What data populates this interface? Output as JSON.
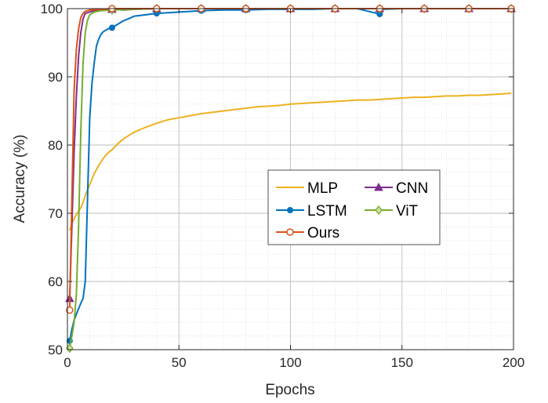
{
  "chart_data": {
    "type": "line",
    "xlabel": "Epochs",
    "ylabel": "Accuracy (%)",
    "xlim": [
      0,
      200
    ],
    "ylim": [
      50,
      100
    ],
    "xticks": [
      "0",
      "50",
      "100",
      "150",
      "200"
    ],
    "yticks": [
      "50",
      "60",
      "70",
      "80",
      "90",
      "100"
    ],
    "grid": "on (major and minor, dotted)",
    "legend_location": "center",
    "marker_interval": 20,
    "series": [
      {
        "name": "MLP",
        "color": "#EDB120",
        "marker": "none",
        "points": [
          [
            1,
            67.5
          ],
          [
            2,
            68.5
          ],
          [
            3,
            69.2
          ],
          [
            4,
            69.8
          ],
          [
            5,
            70.3
          ],
          [
            6,
            70.8
          ],
          [
            7,
            71.6
          ],
          [
            8,
            72.6
          ],
          [
            9,
            73.4
          ],
          [
            10,
            74.2
          ],
          [
            12,
            75.8
          ],
          [
            14,
            77.0
          ],
          [
            16,
            78.0
          ],
          [
            18,
            78.8
          ],
          [
            20,
            79.3
          ],
          [
            22,
            80.0
          ],
          [
            24,
            80.6
          ],
          [
            26,
            81.1
          ],
          [
            28,
            81.5
          ],
          [
            30,
            81.9
          ],
          [
            35,
            82.6
          ],
          [
            40,
            83.2
          ],
          [
            45,
            83.7
          ],
          [
            50,
            84.0
          ],
          [
            55,
            84.3
          ],
          [
            60,
            84.6
          ],
          [
            65,
            84.8
          ],
          [
            70,
            85.0
          ],
          [
            75,
            85.2
          ],
          [
            80,
            85.4
          ],
          [
            85,
            85.6
          ],
          [
            90,
            85.7
          ],
          [
            95,
            85.8
          ],
          [
            100,
            86.0
          ],
          [
            105,
            86.1
          ],
          [
            110,
            86.2
          ],
          [
            115,
            86.3
          ],
          [
            120,
            86.4
          ],
          [
            125,
            86.5
          ],
          [
            130,
            86.6
          ],
          [
            135,
            86.6
          ],
          [
            140,
            86.7
          ],
          [
            145,
            86.8
          ],
          [
            150,
            86.9
          ],
          [
            155,
            87.0
          ],
          [
            160,
            87.0
          ],
          [
            165,
            87.1
          ],
          [
            170,
            87.2
          ],
          [
            175,
            87.2
          ],
          [
            180,
            87.3
          ],
          [
            185,
            87.3
          ],
          [
            190,
            87.4
          ],
          [
            195,
            87.5
          ],
          [
            199,
            87.6
          ]
        ]
      },
      {
        "name": "CNN",
        "color": "#7E2F8E",
        "marker": "triangle-up",
        "points": [
          [
            1,
            57.5
          ],
          [
            2,
            68
          ],
          [
            3,
            79
          ],
          [
            4,
            87
          ],
          [
            5,
            93
          ],
          [
            6,
            96.5
          ],
          [
            7,
            98.5
          ],
          [
            8,
            99.3
          ],
          [
            10,
            99.5
          ],
          [
            12,
            99.7
          ],
          [
            15,
            99.8
          ],
          [
            20,
            99.9
          ],
          [
            25,
            99.8
          ],
          [
            30,
            99.9
          ],
          [
            40,
            100
          ],
          [
            60,
            100
          ],
          [
            80,
            100
          ],
          [
            100,
            100
          ],
          [
            120,
            100
          ],
          [
            140,
            100
          ],
          [
            160,
            100
          ],
          [
            180,
            100
          ],
          [
            199,
            100
          ]
        ]
      },
      {
        "name": "LSTM",
        "color": "#0072BD",
        "marker": "circle-filled",
        "points": [
          [
            1,
            51.3
          ],
          [
            2,
            53
          ],
          [
            3,
            54.3
          ],
          [
            4,
            55.2
          ],
          [
            5,
            56
          ],
          [
            6,
            56.8
          ],
          [
            7,
            57.5
          ],
          [
            8,
            60
          ],
          [
            9,
            72
          ],
          [
            10,
            84
          ],
          [
            11,
            89
          ],
          [
            12,
            92
          ],
          [
            13,
            94.5
          ],
          [
            14,
            95.5
          ],
          [
            15,
            96.2
          ],
          [
            16,
            96.6
          ],
          [
            18,
            97
          ],
          [
            20,
            97.2
          ],
          [
            22,
            97.6
          ],
          [
            25,
            98.2
          ],
          [
            28,
            98.6
          ],
          [
            30,
            98.9
          ],
          [
            35,
            99.1
          ],
          [
            40,
            99.3
          ],
          [
            50,
            99.5
          ],
          [
            60,
            99.7
          ],
          [
            70,
            99.8
          ],
          [
            80,
            99.8
          ],
          [
            90,
            99.9
          ],
          [
            100,
            99.9
          ],
          [
            110,
            99.9
          ],
          [
            120,
            100
          ],
          [
            130,
            100
          ],
          [
            140,
            99.2
          ],
          [
            141,
            99.9
          ],
          [
            150,
            100
          ],
          [
            160,
            100
          ],
          [
            170,
            100
          ],
          [
            180,
            100
          ],
          [
            190,
            100
          ],
          [
            199,
            100
          ]
        ]
      },
      {
        "name": "ViT",
        "color": "#77AC30",
        "marker": "diamond",
        "points": [
          [
            1,
            50.2
          ],
          [
            2,
            52
          ],
          [
            3,
            54
          ],
          [
            4,
            58
          ],
          [
            5,
            68
          ],
          [
            6,
            82
          ],
          [
            7,
            92
          ],
          [
            8,
            96.5
          ],
          [
            9,
            98.3
          ],
          [
            10,
            99.1
          ],
          [
            12,
            99.5
          ],
          [
            15,
            99.7
          ],
          [
            20,
            99.8
          ],
          [
            30,
            99.9
          ],
          [
            40,
            100
          ],
          [
            60,
            100
          ],
          [
            80,
            100
          ],
          [
            100,
            100
          ],
          [
            120,
            100
          ],
          [
            140,
            100
          ],
          [
            160,
            100
          ],
          [
            180,
            100
          ],
          [
            199,
            100
          ]
        ]
      },
      {
        "name": "Ours",
        "color": "#D95319",
        "marker": "circle-open",
        "points": [
          [
            1,
            55.8
          ],
          [
            2,
            72
          ],
          [
            3,
            88
          ],
          [
            4,
            94
          ],
          [
            5,
            97
          ],
          [
            6,
            98.7
          ],
          [
            7,
            99.3
          ],
          [
            8,
            99.6
          ],
          [
            10,
            99.8
          ],
          [
            15,
            99.9
          ],
          [
            20,
            100
          ],
          [
            40,
            100
          ],
          [
            60,
            100
          ],
          [
            80,
            100
          ],
          [
            100,
            100
          ],
          [
            120,
            100
          ],
          [
            140,
            100
          ],
          [
            160,
            100
          ],
          [
            180,
            100
          ],
          [
            199,
            100
          ]
        ]
      }
    ]
  }
}
